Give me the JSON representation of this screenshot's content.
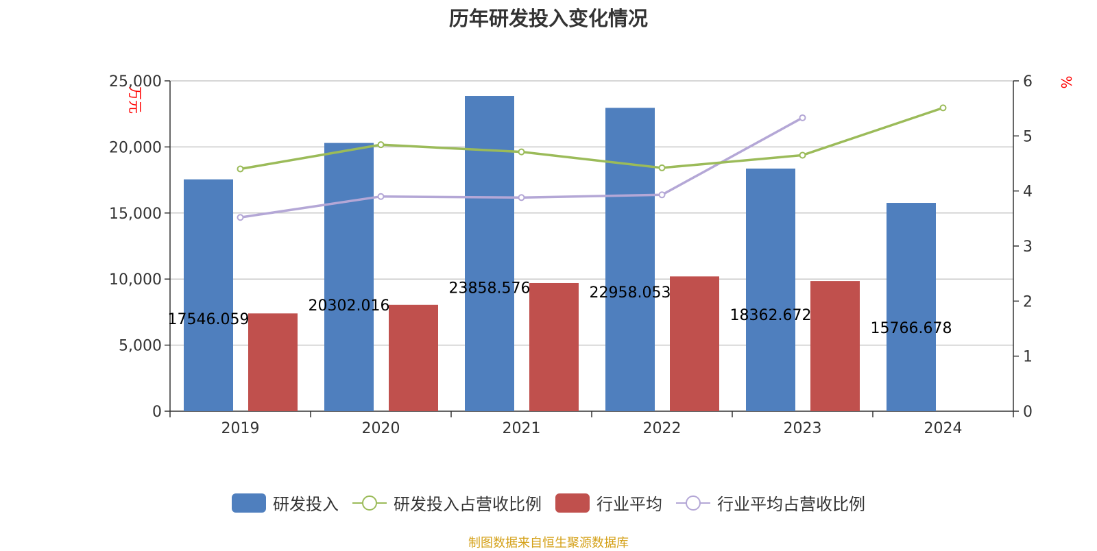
{
  "title": "历年研发投入变化情况",
  "source": "制图数据来自恒生聚源数据库",
  "colors": {
    "rd": "#4f7fbe",
    "rd_ratio": "#9bbb59",
    "ind": "#c0504d",
    "ind_ratio": "#b4a7d6",
    "unit": "#ff0000",
    "grid": "#c8c8c8",
    "axis": "#333333"
  },
  "chart_data": {
    "type": "bar",
    "categories": [
      "2019",
      "2020",
      "2021",
      "2022",
      "2023",
      "2024"
    ],
    "ylabel_left": "万元",
    "ylabel_right": "%",
    "ylim_left": [
      0,
      25000
    ],
    "ylim_right": [
      0,
      6
    ],
    "yticks_left": [
      "0",
      "5,000",
      "10,000",
      "15,000",
      "20,000",
      "25,000"
    ],
    "yticks_right": [
      "0",
      "1",
      "2",
      "3",
      "4",
      "5",
      "6"
    ],
    "grid": true,
    "legend_position": "bottom",
    "series": [
      {
        "name": "研发投入",
        "kind": "bar",
        "axis": "left",
        "values": [
          17546.059,
          20302.016,
          23858.576,
          22958.053,
          18362.672,
          15766.678
        ],
        "labels": [
          "17546.059",
          "20302.016",
          "23858.576",
          "22958.053",
          "18362.672",
          "15766.678"
        ]
      },
      {
        "name": "研发投入占营收比例",
        "kind": "line",
        "axis": "right",
        "values": [
          4.4,
          4.84,
          4.71,
          4.42,
          4.65,
          5.51
        ]
      },
      {
        "name": "行业平均",
        "kind": "bar",
        "axis": "left",
        "values": [
          7400,
          8050,
          9700,
          10200,
          9850,
          null
        ]
      },
      {
        "name": "行业平均占营收比例",
        "kind": "line",
        "axis": "right",
        "values": [
          3.52,
          3.9,
          3.88,
          3.93,
          5.33,
          null
        ]
      }
    ]
  }
}
